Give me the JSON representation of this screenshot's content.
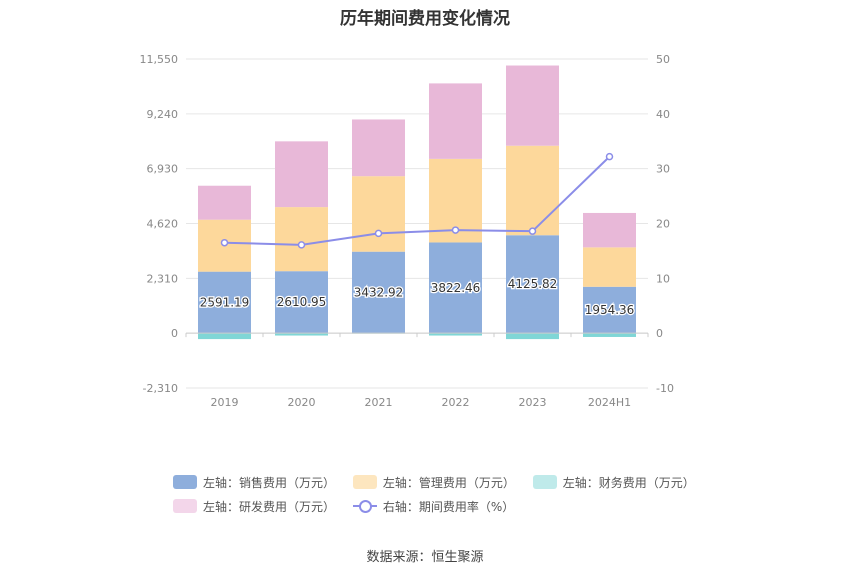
{
  "chart_data": {
    "type": "bar",
    "title": "历年期间费用变化情况",
    "categories": [
      "2019",
      "2020",
      "2021",
      "2022",
      "2023",
      "2024H1"
    ],
    "series": [
      {
        "name": "左轴：销售费用（万元）",
        "axis": "left",
        "type": "bar",
        "color": "#8eaedc",
        "values": [
          2591.19,
          2610.95,
          3432.92,
          3822.46,
          4125.82,
          1954.36
        ]
      },
      {
        "name": "左轴：管理费用（万元）",
        "axis": "left",
        "type": "bar",
        "color": "#fdd89b",
        "values": [
          2190,
          2700,
          3180,
          3520,
          3770,
          1660
        ]
      },
      {
        "name": "左轴：财务费用（万元）",
        "axis": "left",
        "type": "bar",
        "color": "#7fd6d6",
        "values": [
          -250,
          -100,
          -20,
          -100,
          -250,
          -160
        ]
      },
      {
        "name": "左轴：研发费用（万元）",
        "axis": "left",
        "type": "bar",
        "color": "#e8b8d8",
        "values": [
          1430,
          2770,
          2390,
          3180,
          3380,
          1450
        ]
      },
      {
        "name": "右轴：期间费用率（%）",
        "axis": "right",
        "type": "line",
        "color": "#8b8de8",
        "values": [
          16.5,
          16.1,
          18.2,
          18.8,
          18.6,
          32.2
        ]
      }
    ],
    "data_labels": [
      "2591.19",
      "2610.95",
      "3432.92",
      "3822.46",
      "4125.82",
      "1954.36"
    ],
    "left_axis": {
      "ticks": [
        "11,550",
        "9,240",
        "6,930",
        "4,620",
        "2,310",
        "0",
        "-2,310"
      ],
      "range": [
        -2310,
        11550
      ]
    },
    "right_axis": {
      "ticks": [
        "50",
        "40",
        "30",
        "20",
        "10",
        "0",
        "-10"
      ],
      "range": [
        -10,
        50
      ]
    },
    "grid": true,
    "legend_position": "bottom"
  },
  "source_text": "数据来源：恒生聚源"
}
